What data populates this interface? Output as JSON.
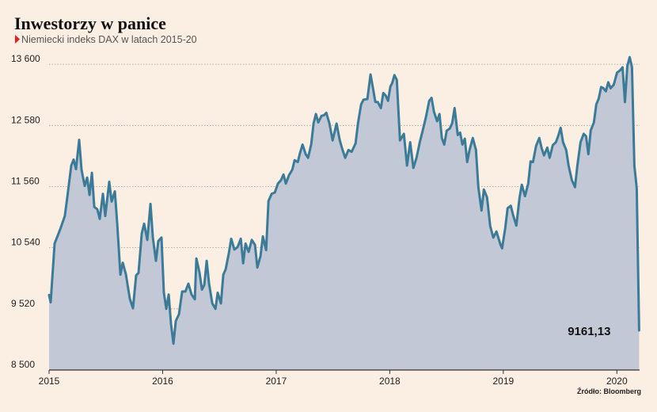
{
  "chart_data": {
    "type": "area",
    "title": "Inwestorzy w panice",
    "subtitle": "Niemiecki indeks DAX w latach 2015-20",
    "source": "Źródło: Bloomberg",
    "end_label": "9161,13",
    "color": "#3b7b98",
    "fill": "#c3c8d6",
    "grid": true,
    "xlim": [
      2015,
      2020.2
    ],
    "xticks": [
      2015,
      2016,
      2017,
      2018,
      2019,
      2020
    ],
    "ylim": [
      8500,
      13800
    ],
    "yticks": [
      {
        "value": 8500,
        "label": "8 500"
      },
      {
        "value": 9520,
        "label": "9 520"
      },
      {
        "value": 10540,
        "label": "10 540"
      },
      {
        "value": 11560,
        "label": "11 560"
      },
      {
        "value": 12580,
        "label": "12 580"
      },
      {
        "value": 13600,
        "label": "13 600"
      }
    ],
    "x": [
      2015.0,
      2015.014,
      2015.049,
      2015.098,
      2015.139,
      2015.16,
      2015.195,
      2015.216,
      2015.237,
      2015.265,
      2015.286,
      2015.314,
      2015.335,
      2015.356,
      2015.377,
      2015.398,
      2015.425,
      2015.446,
      2015.474,
      2015.495,
      2015.53,
      2015.551,
      2015.579,
      2015.6,
      2015.628,
      2015.649,
      2015.676,
      2015.711,
      2015.739,
      2015.767,
      2015.788,
      2015.816,
      2015.837,
      2015.865,
      2015.893,
      2015.914,
      2015.941,
      2015.962,
      2015.99,
      2016.011,
      2016.032,
      2016.053,
      2016.074,
      2016.095,
      2016.116,
      2016.144,
      2016.172,
      2016.2,
      2016.227,
      2016.255,
      2016.283,
      2016.297,
      2016.325,
      2016.346,
      2016.367,
      2016.388,
      2016.409,
      2016.437,
      2016.465,
      2016.485,
      2016.513,
      2016.534,
      2016.555,
      2016.583,
      2016.604,
      2016.632,
      2016.66,
      2016.688,
      2016.709,
      2016.73,
      2016.757,
      2016.785,
      2016.813,
      2016.834,
      2016.862,
      2016.883,
      2016.911,
      2016.932,
      2016.96,
      2016.988,
      2017.015,
      2017.043,
      2017.064,
      2017.085,
      2017.113,
      2017.141,
      2017.162,
      2017.19,
      2017.211,
      2017.232,
      2017.26,
      2017.281,
      2017.308,
      2017.329,
      2017.35,
      2017.371,
      2017.399,
      2017.42,
      2017.441,
      2017.469,
      2017.497,
      2017.532,
      2017.559,
      2017.58,
      2017.608,
      2017.636,
      2017.664,
      2017.699,
      2017.72,
      2017.748,
      2017.769,
      2017.803,
      2017.831,
      2017.852,
      2017.873,
      2017.894,
      2017.922,
      2017.943,
      2017.964,
      2017.985,
      2018.006,
      2018.02,
      2018.041,
      2018.062,
      2018.09,
      2018.124,
      2018.152,
      2018.18,
      2018.208,
      2018.236,
      2018.264,
      2018.292,
      2018.32,
      2018.347,
      2018.368,
      2018.389,
      2018.417,
      2018.438,
      2018.459,
      2018.48,
      2018.501,
      2018.529,
      2018.55,
      2018.571,
      2018.599,
      2018.62,
      2018.64,
      2018.661,
      2018.682,
      2018.703,
      2018.731,
      2018.759,
      2018.78,
      2018.808,
      2018.829,
      2018.857,
      2018.885,
      2018.912,
      2018.94,
      2018.975,
      2018.989,
      2019.017,
      2019.038,
      2019.066,
      2019.087,
      2019.115,
      2019.143,
      2019.163,
      2019.191,
      2019.219,
      2019.24,
      2019.261,
      2019.289,
      2019.317,
      2019.338,
      2019.359,
      2019.387,
      2019.408,
      2019.435,
      2019.463,
      2019.484,
      2019.505,
      2019.526,
      2019.554,
      2019.575,
      2019.603,
      2019.631,
      2019.652,
      2019.68,
      2019.708,
      2019.729,
      2019.749,
      2019.77,
      2019.798,
      2019.819,
      2019.84,
      2019.861,
      2019.882,
      2019.903,
      2019.924,
      2019.945,
      2019.973,
      2020.001,
      2020.029,
      2020.05,
      2020.071,
      2020.092,
      2020.113,
      2020.133,
      2020.154,
      2020.175,
      2020.196
    ],
    "values": [
      9750,
      9630,
      10610,
      10850,
      11070,
      11380,
      11910,
      12010,
      11850,
      12340,
      11840,
      11570,
      11710,
      11420,
      11790,
      11220,
      11180,
      11020,
      11440,
      11070,
      11640,
      11310,
      11480,
      10940,
      10090,
      10290,
      10100,
      9690,
      9530,
      10080,
      10120,
      10780,
      10940,
      10670,
      11270,
      10710,
      10320,
      10650,
      10710,
      9790,
      9520,
      9760,
      9260,
      8940,
      9320,
      9430,
      9810,
      9810,
      9940,
      9760,
      9680,
      10360,
      10120,
      9840,
      9920,
      10320,
      9940,
      9610,
      9520,
      9790,
      9610,
      10090,
      10180,
      10450,
      10690,
      10510,
      10550,
      10690,
      10280,
      10610,
      10470,
      10670,
      10590,
      10210,
      10400,
      10730,
      10500,
      11320,
      11440,
      11460,
      11610,
      11670,
      11760,
      11610,
      11750,
      11840,
      12000,
      11970,
      12130,
      12260,
      12100,
      12040,
      12260,
      12610,
      12770,
      12630,
      12740,
      12750,
      12790,
      12610,
      12330,
      12610,
      12340,
      12200,
      12040,
      12170,
      12140,
      12280,
      12610,
      12930,
      13010,
      13020,
      13430,
      13200,
      12970,
      12970,
      12870,
      13120,
      13080,
      12990,
      13230,
      13280,
      13420,
      13340,
      12330,
      12440,
      11910,
      12300,
      11870,
      12040,
      12300,
      12510,
      12730,
      12990,
      13040,
      12810,
      12650,
      12770,
      12370,
      12260,
      12490,
      12530,
      12620,
      12870,
      12420,
      12460,
      12260,
      12360,
      11970,
      12170,
      12370,
      12170,
      11550,
      11160,
      11510,
      11380,
      10900,
      10710,
      10810,
      10590,
      10530,
      10870,
      11200,
      11240,
      11080,
      10910,
      11380,
      11590,
      11400,
      11610,
      11980,
      11970,
      12240,
      12370,
      12200,
      12080,
      12210,
      12040,
      12250,
      12300,
      12410,
      12540,
      12300,
      12170,
      11910,
      11670,
      11550,
      11910,
      12300,
      12440,
      12400,
      12100,
      12500,
      12630,
      12930,
      13030,
      13220,
      13200,
      13150,
      13300,
      13200,
      13260,
      13460,
      13500,
      13550,
      12970,
      13570,
      13720,
      13550,
      11910,
      11530,
      9161.13
    ]
  }
}
